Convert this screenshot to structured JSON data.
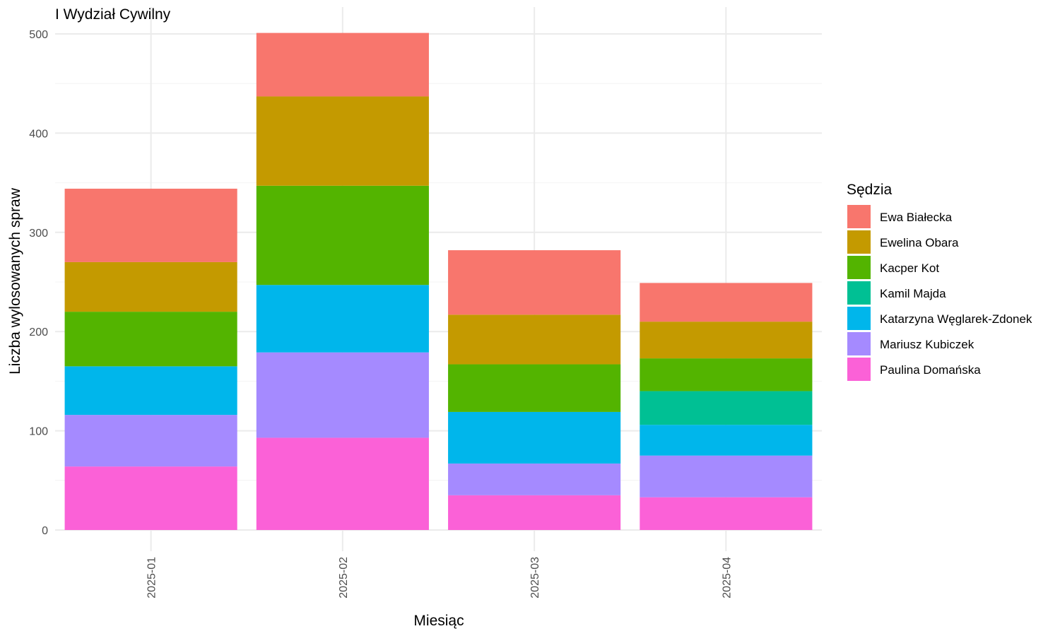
{
  "chart_data": {
    "type": "bar",
    "stacked": true,
    "title": "I Wydział Cywilny",
    "xlabel": "Miesiąc",
    "ylabel": "Liczba wylosowanych spraw",
    "ylim": [
      0,
      510
    ],
    "yticks": [
      0,
      100,
      200,
      300,
      400,
      500
    ],
    "grid": true,
    "legend": {
      "title": "Sędzia",
      "position": "right"
    },
    "categories": [
      "2025-01",
      "2025-02",
      "2025-03",
      "2025-04"
    ],
    "series": [
      {
        "name": "Ewa Białecka",
        "color": "#F8766D",
        "values": [
          74,
          64,
          65,
          39
        ]
      },
      {
        "name": "Ewelina Obara",
        "color": "#C49A00",
        "values": [
          50,
          90,
          50,
          37
        ]
      },
      {
        "name": "Kacper Kot",
        "color": "#53B400",
        "values": [
          55,
          100,
          48,
          33
        ]
      },
      {
        "name": "Kamil Majda",
        "color": "#00C094",
        "values": [
          0,
          0,
          0,
          34
        ]
      },
      {
        "name": "Katarzyna Węglarek-Zdonek",
        "color": "#00B6EB",
        "values": [
          49,
          68,
          52,
          31
        ]
      },
      {
        "name": "Mariusz Kubiczek",
        "color": "#A58AFF",
        "values": [
          52,
          86,
          32,
          42
        ]
      },
      {
        "name": "Paulina Domańska",
        "color": "#FB61D7",
        "values": [
          64,
          93,
          35,
          33
        ]
      }
    ]
  }
}
